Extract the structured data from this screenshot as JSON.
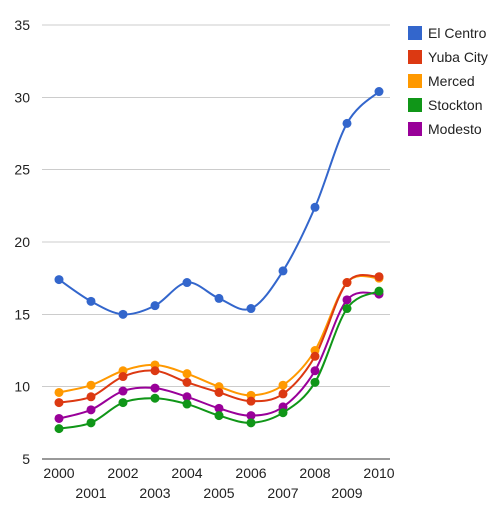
{
  "chart_data": {
    "type": "line",
    "title": "",
    "xlabel": "",
    "ylabel": "",
    "x": [
      2000,
      2001,
      2002,
      2003,
      2004,
      2005,
      2006,
      2007,
      2008,
      2009,
      2010
    ],
    "x_tick_labels": [
      "2000",
      "2001",
      "2002",
      "2003",
      "2004",
      "2005",
      "2006",
      "2007",
      "2008",
      "2009",
      "2010"
    ],
    "ylim": [
      5,
      35
    ],
    "y_ticks": [
      5,
      10,
      15,
      20,
      25,
      30,
      35
    ],
    "y_tick_labels": [
      "5",
      "10",
      "15",
      "20",
      "25",
      "30",
      "35"
    ],
    "grid": "horizontal",
    "legend_position": "right",
    "series": [
      {
        "name": "El Centro",
        "color": "#3366cc",
        "values": [
          17.4,
          15.9,
          15.0,
          15.6,
          17.2,
          16.1,
          15.4,
          18.0,
          22.4,
          28.2,
          30.4
        ]
      },
      {
        "name": "Yuba City",
        "color": "#dc3912",
        "values": [
          8.9,
          9.3,
          10.7,
          11.1,
          10.3,
          9.6,
          9.0,
          9.5,
          12.1,
          17.2,
          17.6
        ]
      },
      {
        "name": "Merced",
        "color": "#ff9900",
        "values": [
          9.6,
          10.1,
          11.1,
          11.5,
          10.9,
          10.0,
          9.4,
          10.1,
          12.5,
          17.2,
          17.5
        ]
      },
      {
        "name": "Stockton",
        "color": "#109618",
        "values": [
          7.1,
          7.5,
          8.9,
          9.2,
          8.8,
          8.0,
          7.5,
          8.2,
          10.3,
          15.4,
          16.6
        ]
      },
      {
        "name": "Modesto",
        "color": "#990099",
        "values": [
          7.8,
          8.4,
          9.7,
          9.9,
          9.3,
          8.5,
          8.0,
          8.6,
          11.1,
          16.0,
          16.4
        ]
      }
    ]
  }
}
